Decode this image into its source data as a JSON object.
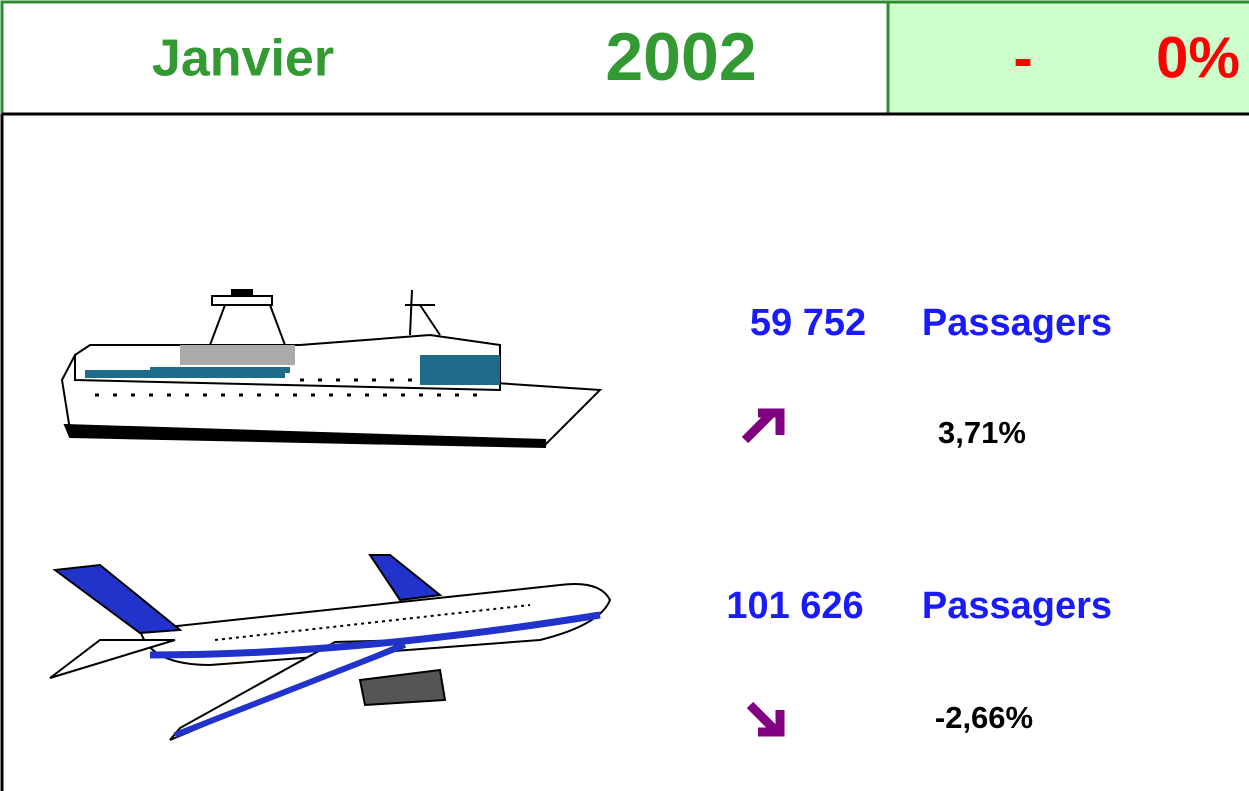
{
  "header": {
    "month": "Janvier",
    "year": "2002",
    "sign": "-",
    "change": "0%"
  },
  "rows": [
    {
      "count": "59 752",
      "unit": "Passagers",
      "change": "3,71%"
    },
    {
      "count": "101 626",
      "unit": "Passagers",
      "change": "-2,66%"
    }
  ]
}
